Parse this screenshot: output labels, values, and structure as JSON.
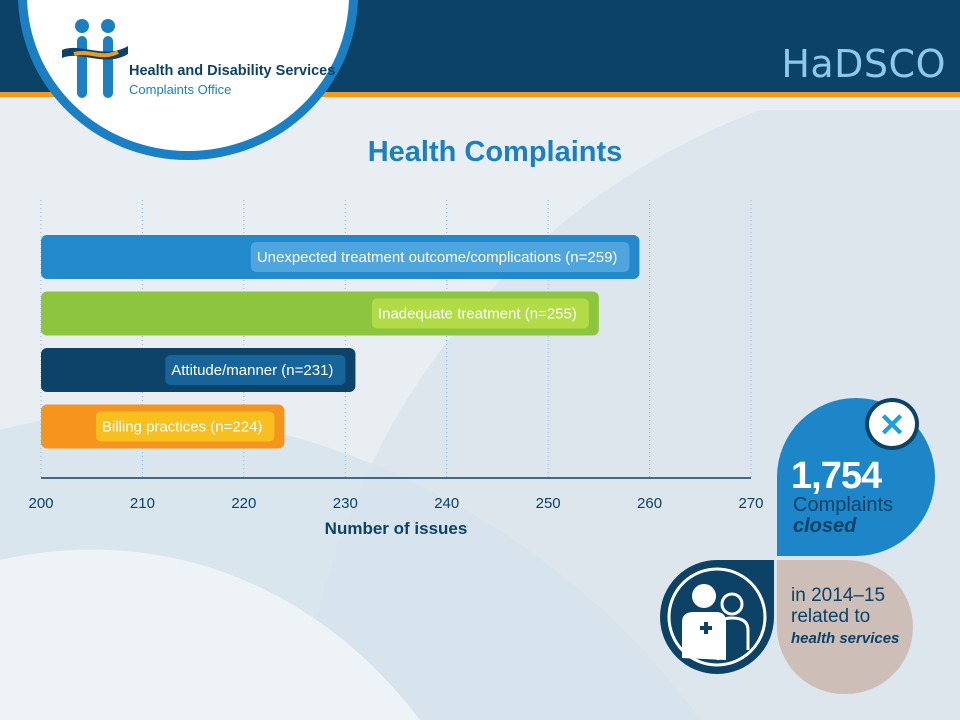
{
  "header": {
    "org_name": "Health and Disability Services",
    "org_subtitle": "Complaints Office",
    "brand": "HaDSCO"
  },
  "colors": {
    "header_bg": "#0c4266",
    "accent_orange": "#f39a1e",
    "accent_blue": "#1b7fc4"
  },
  "chart_data": {
    "type": "bar",
    "orientation": "horizontal",
    "title": "Health Complaints",
    "xlabel": "Number of issues",
    "xlim": [
      200,
      270
    ],
    "xticks": [
      "200",
      "210",
      "220",
      "230",
      "240",
      "250",
      "260",
      "270"
    ],
    "grid": "vertical dotted",
    "categories": [
      "Unexpected treatment outcome/complications",
      "Inadequate treatment",
      "Attitude/manner",
      "Billing practices"
    ],
    "values": [
      259,
      255,
      231,
      224
    ],
    "bar_labels": [
      "Unexpected treatment outcome/complications (n=259)",
      "Inadequate treatment (n=255)",
      "Attitude/manner (n=231)",
      "Billing practices (n=224)"
    ],
    "bar_colors": [
      "#2289cd",
      "#8cc63f",
      "#0d4368",
      "#f7941d"
    ],
    "label_bg_colors": [
      "#4fa5dd",
      "#b2dc45",
      "#17649a",
      "#f9bf1f"
    ]
  },
  "stats": {
    "closed_number": "1,754",
    "closed_line1": "Complaints",
    "closed_line2": "closed",
    "x_icon": "close-icon",
    "related_line1": "in 2014–15",
    "related_line2": "related to",
    "related_line3": "health services",
    "person_icon": "health-professional-icon"
  }
}
